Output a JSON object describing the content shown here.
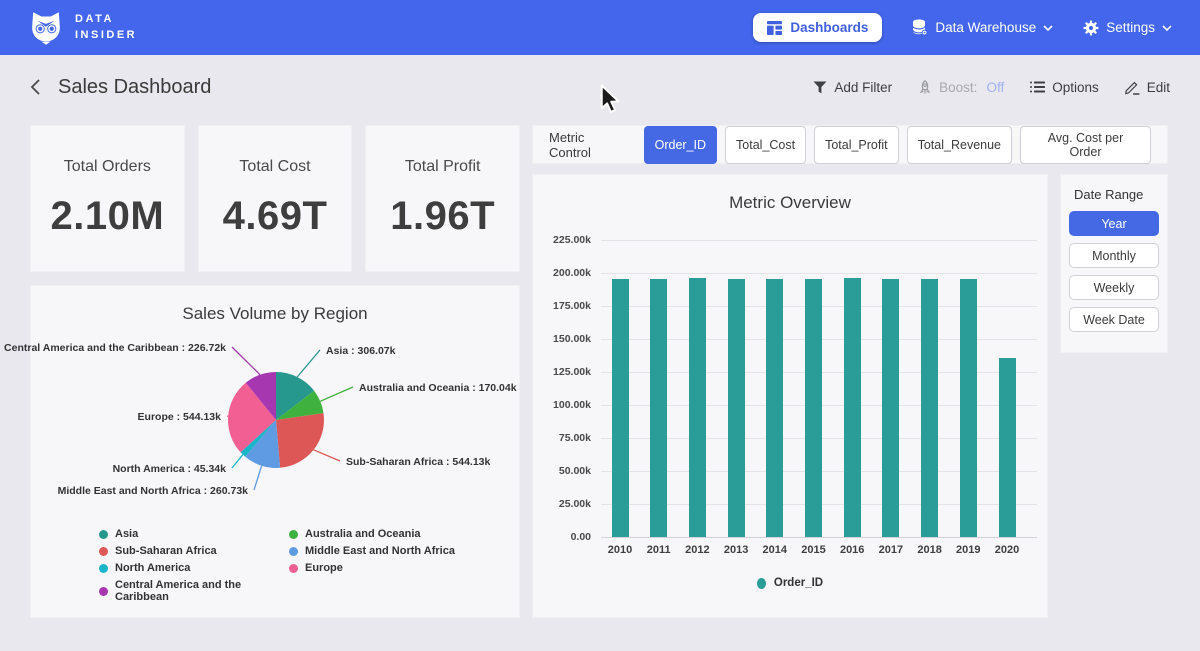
{
  "nav": {
    "brand_line1": "DATA",
    "brand_line2": "INSIDER",
    "dashboards_label": "Dashboards",
    "data_warehouse_label": "Data Warehouse",
    "settings_label": "Settings"
  },
  "toolbar": {
    "page_title": "Sales Dashboard",
    "add_filter_label": "Add Filter",
    "boost_label": "Boost:",
    "boost_state": "Off",
    "options_label": "Options",
    "edit_label": "Edit"
  },
  "kpis": [
    {
      "label": "Total Orders",
      "value": "2.10M"
    },
    {
      "label": "Total Cost",
      "value": "4.69T"
    },
    {
      "label": "Total Profit",
      "value": "1.96T"
    }
  ],
  "metric_control": {
    "label": "Metric Control",
    "chips": [
      {
        "label": "Order_ID",
        "selected": true
      },
      {
        "label": "Total_Cost",
        "selected": false
      },
      {
        "label": "Total_Profit",
        "selected": false
      },
      {
        "label": "Total_Revenue",
        "selected": false
      },
      {
        "label": "Avg. Cost per Order",
        "selected": false
      }
    ]
  },
  "date_range": {
    "label": "Date Range",
    "options": [
      {
        "label": "Year",
        "selected": true
      },
      {
        "label": "Monthly",
        "selected": false
      },
      {
        "label": "Weekly",
        "selected": false
      },
      {
        "label": "Week Date",
        "selected": false
      }
    ]
  },
  "colors": {
    "nav_blue": "#4366ec",
    "accent_blue": "#4568e4",
    "bar_teal": "#2a9d99",
    "boost_off": "#9fb0ef"
  },
  "chart_data": [
    {
      "type": "pie",
      "title": "Sales Volume by Region",
      "unit": "k",
      "slices": [
        {
          "label": "Asia",
          "value": 306.07,
          "display": "Asia : 306.07k",
          "color": "#27988e"
        },
        {
          "label": "Australia and Oceania",
          "value": 170.04,
          "display": "Australia and Oceania : 170.04k",
          "color": "#3fb13f"
        },
        {
          "label": "Sub-Saharan Africa",
          "value": 544.13,
          "display": "Sub-Saharan Africa : 544.13k",
          "color": "#dd5757"
        },
        {
          "label": "Middle East and North Africa",
          "value": 260.73,
          "display": "Middle East and North Africa : 260.73k",
          "color": "#5e9be2"
        },
        {
          "label": "North America",
          "value": 45.34,
          "display": "North America : 45.34k",
          "color": "#1ab5c9"
        },
        {
          "label": "Europe",
          "value": 544.13,
          "display": "Europe : 544.13k",
          "color": "#f25f92"
        },
        {
          "label": "Central America and the Caribbean",
          "value": 226.72,
          "display": "Central America and the Caribbean : 226.72k",
          "color": "#a637b0"
        }
      ],
      "legend_columns": [
        [
          "Asia",
          "Sub-Saharan Africa",
          "North America",
          "Central America and the Caribbean"
        ],
        [
          "Australia and Oceania",
          "Middle East and North Africa",
          "Europe"
        ]
      ]
    },
    {
      "type": "bar",
      "title": "Metric Overview",
      "categories": [
        "2010",
        "2011",
        "2012",
        "2013",
        "2014",
        "2015",
        "2016",
        "2017",
        "2018",
        "2019",
        "2020"
      ],
      "series": [
        {
          "name": "Order_ID",
          "color": "#2a9d99",
          "values": [
            195.6,
            195.4,
            196.5,
            195.5,
            195.3,
            195.4,
            196.6,
            195.6,
            195.5,
            195.6,
            135.5
          ]
        }
      ],
      "value_unit": "k",
      "ylim": [
        0,
        225
      ],
      "y_ticks": [
        "225.00k",
        "200.00k",
        "175.00k",
        "150.00k",
        "125.00k",
        "100.00k",
        "75.00k",
        "50.00k",
        "25.00k",
        "0.00"
      ],
      "grid": true,
      "legend_position": "bottom"
    }
  ]
}
